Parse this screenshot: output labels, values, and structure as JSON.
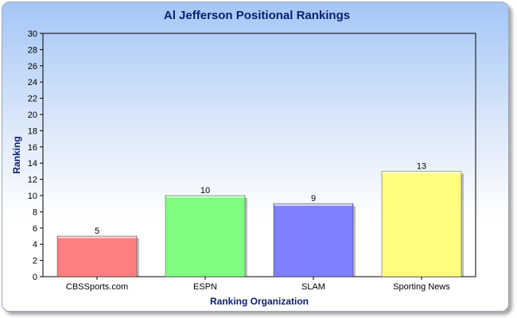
{
  "chart_data": {
    "type": "bar",
    "title": "Al Jefferson Positional Rankings",
    "xlabel": "Ranking Organization",
    "ylabel": "Ranking",
    "ylim": [
      0,
      30
    ],
    "yticks": [
      0,
      2,
      4,
      6,
      8,
      10,
      12,
      14,
      16,
      18,
      20,
      22,
      24,
      26,
      28,
      30
    ],
    "categories": [
      "CBSSports.com",
      "ESPN",
      "SLAM",
      "Sporting News"
    ],
    "values": [
      5,
      10,
      9,
      13
    ],
    "data_labels": [
      "5",
      "10",
      "9",
      "13"
    ],
    "colors": [
      "#ff7f7f",
      "#7fff7f",
      "#7f7fff",
      "#ffff7f"
    ],
    "grid": false,
    "legend": "none"
  }
}
